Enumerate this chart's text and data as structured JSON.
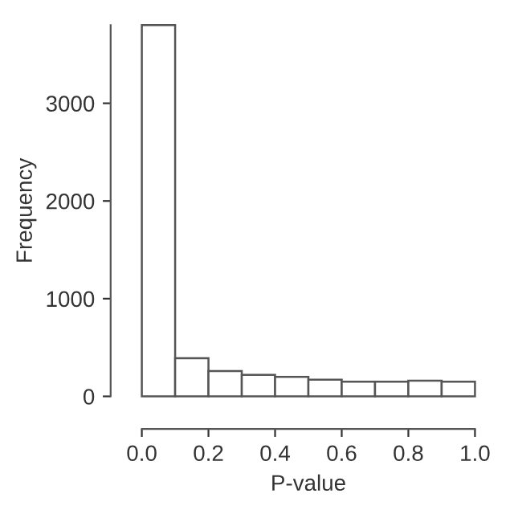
{
  "chart_data": {
    "type": "histogram",
    "xlabel": "P-value",
    "ylabel": "Frequency",
    "bins": [
      0.0,
      0.1,
      0.2,
      0.3,
      0.4,
      0.5,
      0.6,
      0.7,
      0.8,
      0.9,
      1.0
    ],
    "values": [
      3800,
      390,
      260,
      220,
      200,
      170,
      150,
      150,
      160,
      150
    ],
    "color": "#ffffff",
    "xlim": [
      0.0,
      1.0
    ],
    "ylim": [
      0,
      3800
    ],
    "xticks": [
      {
        "value": 0.0,
        "label": "0.0"
      },
      0.2,
      0.4,
      0.6,
      0.8,
      {
        "value": 1.0,
        "label": "1.0"
      }
    ],
    "yticks": [
      0,
      1000,
      2000,
      3000
    ],
    "grid": false
  }
}
